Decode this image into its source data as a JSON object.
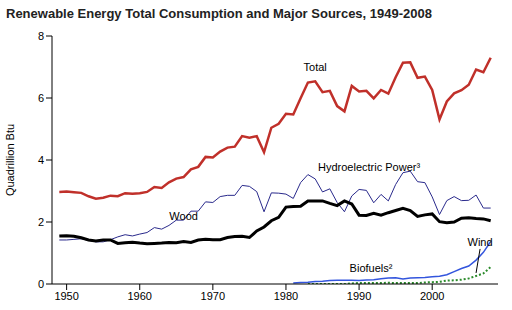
{
  "chart_data": {
    "type": "line",
    "title": "Renewable Energy Total Consumption and Major Sources, 1949-2008",
    "ylabel": "Quadrillion Btu",
    "x": [
      1949,
      1950,
      1951,
      1952,
      1953,
      1954,
      1955,
      1956,
      1957,
      1958,
      1959,
      1960,
      1961,
      1962,
      1963,
      1964,
      1965,
      1966,
      1967,
      1968,
      1969,
      1970,
      1971,
      1972,
      1973,
      1974,
      1975,
      1976,
      1977,
      1978,
      1979,
      1980,
      1981,
      1982,
      1983,
      1984,
      1985,
      1986,
      1987,
      1988,
      1989,
      1990,
      1991,
      1992,
      1993,
      1994,
      1995,
      1996,
      1997,
      1998,
      1999,
      2000,
      2001,
      2002,
      2003,
      2004,
      2005,
      2006,
      2007,
      2008
    ],
    "series": [
      {
        "name": "Total",
        "color": "#c0302a",
        "line_style": "solid",
        "marker": "none",
        "values": [
          2.97,
          2.98,
          2.96,
          2.94,
          2.83,
          2.75,
          2.78,
          2.85,
          2.83,
          2.93,
          2.91,
          2.93,
          2.97,
          3.13,
          3.1,
          3.28,
          3.4,
          3.45,
          3.7,
          3.78,
          4.1,
          4.08,
          4.27,
          4.4,
          4.43,
          4.77,
          4.72,
          4.77,
          4.25,
          5.04,
          5.17,
          5.49,
          5.47,
          5.99,
          6.5,
          6.54,
          6.19,
          6.23,
          5.74,
          5.57,
          6.39,
          6.21,
          6.23,
          5.99,
          6.26,
          6.14,
          6.67,
          7.14,
          7.15,
          6.65,
          6.69,
          6.26,
          5.31,
          5.89,
          6.15,
          6.25,
          6.43,
          6.92,
          6.83,
          7.3
        ]
      },
      {
        "name": "Hydroelectric Power³",
        "color": "#2a2a8c",
        "line_style": "solid",
        "marker": "none",
        "values": [
          1.42,
          1.42,
          1.44,
          1.46,
          1.41,
          1.36,
          1.36,
          1.43,
          1.52,
          1.59,
          1.55,
          1.61,
          1.66,
          1.82,
          1.77,
          1.89,
          2.06,
          2.06,
          2.35,
          2.35,
          2.65,
          2.63,
          2.82,
          2.86,
          2.86,
          3.18,
          3.15,
          2.98,
          2.33,
          2.94,
          2.93,
          2.9,
          2.76,
          3.27,
          3.53,
          3.39,
          2.97,
          3.07,
          2.63,
          2.33,
          2.84,
          3.05,
          3.02,
          2.62,
          2.89,
          2.68,
          3.21,
          3.59,
          3.64,
          3.3,
          3.27,
          2.81,
          2.24,
          2.69,
          2.82,
          2.69,
          2.7,
          2.87,
          2.45,
          2.45
        ]
      },
      {
        "name": "Wood",
        "color": "#000000",
        "line_style": "solid",
        "marker": "none",
        "values": [
          1.55,
          1.56,
          1.54,
          1.49,
          1.42,
          1.39,
          1.42,
          1.42,
          1.31,
          1.33,
          1.35,
          1.32,
          1.3,
          1.31,
          1.32,
          1.34,
          1.33,
          1.37,
          1.34,
          1.42,
          1.44,
          1.43,
          1.43,
          1.5,
          1.53,
          1.54,
          1.5,
          1.71,
          1.84,
          2.04,
          2.15,
          2.48,
          2.5,
          2.51,
          2.68,
          2.68,
          2.68,
          2.6,
          2.53,
          2.68,
          2.58,
          2.22,
          2.21,
          2.28,
          2.22,
          2.3,
          2.37,
          2.44,
          2.37,
          2.18,
          2.23,
          2.26,
          2.01,
          1.98,
          2.0,
          2.12,
          2.14,
          2.11,
          2.1,
          2.04
        ]
      },
      {
        "name": "Biofuels²",
        "color": "#3355dd",
        "line_style": "solid",
        "marker": "none",
        "values": [
          null,
          null,
          null,
          null,
          null,
          null,
          null,
          null,
          null,
          null,
          null,
          null,
          null,
          null,
          null,
          null,
          null,
          null,
          null,
          null,
          null,
          null,
          null,
          null,
          null,
          null,
          null,
          null,
          null,
          null,
          null,
          null,
          0.03,
          0.05,
          0.06,
          0.08,
          0.09,
          0.11,
          0.12,
          0.12,
          0.12,
          0.11,
          0.13,
          0.14,
          0.17,
          0.19,
          0.2,
          0.16,
          0.19,
          0.2,
          0.21,
          0.23,
          0.25,
          0.3,
          0.4,
          0.5,
          0.58,
          0.77,
          1.02,
          1.37
        ]
      },
      {
        "name": "Wind",
        "color": "#2a8a2a",
        "line_style": "dotted",
        "marker": "none",
        "values": [
          null,
          null,
          null,
          null,
          null,
          null,
          null,
          null,
          null,
          null,
          null,
          null,
          null,
          null,
          null,
          null,
          null,
          null,
          null,
          null,
          null,
          null,
          null,
          null,
          null,
          null,
          null,
          null,
          null,
          null,
          null,
          null,
          null,
          null,
          0,
          0,
          0,
          0,
          0,
          0,
          0.02,
          0.03,
          0.03,
          0.03,
          0.03,
          0.04,
          0.03,
          0.03,
          0.03,
          0.03,
          0.05,
          0.06,
          0.07,
          0.11,
          0.12,
          0.14,
          0.18,
          0.26,
          0.34,
          0.55
        ]
      }
    ],
    "xlim": [
      1948,
      2009
    ],
    "xticks": [
      1950,
      1960,
      1970,
      1980,
      1990,
      2000
    ],
    "ylim": [
      0,
      8
    ],
    "yticks": [
      0,
      2,
      4,
      6,
      8
    ],
    "grid": false
  }
}
